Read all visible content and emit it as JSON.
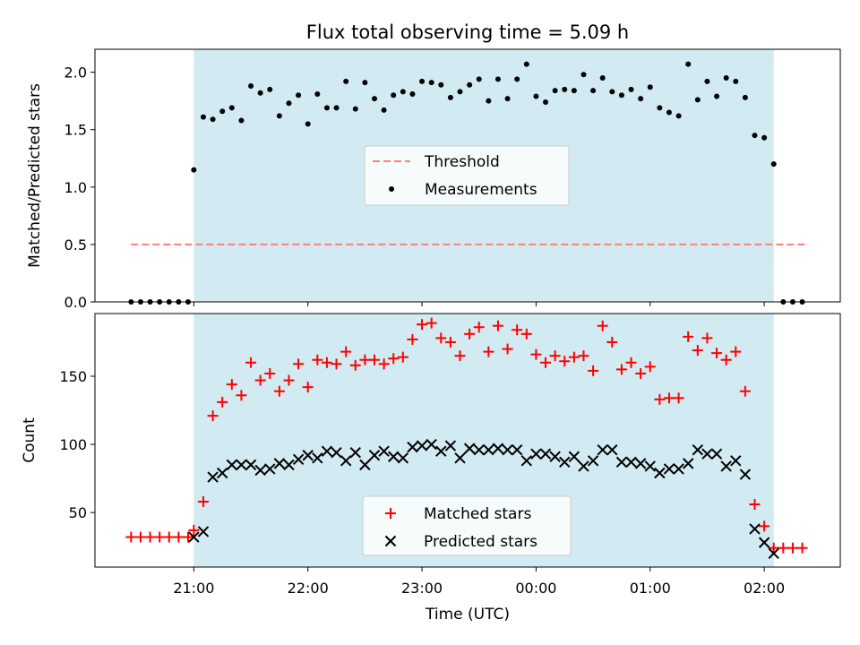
{
  "chart_data": [
    {
      "type": "scatter",
      "title": "Flux total observing time = 5.09 h",
      "xlabel": "",
      "ylabel": "Matched/Predicted stars",
      "ylim": [
        0,
        2.2
      ],
      "yticks": [
        "0.0",
        "0.5",
        "1.0",
        "1.5",
        "2.0"
      ],
      "xlim": [
        "20:08",
        "02:40"
      ],
      "shaded_interval": [
        "21:00",
        "02:05"
      ],
      "shaded_color": "#add8e6",
      "legend_position": "center",
      "threshold": {
        "name": "Threshold",
        "value": 0.5,
        "x_start": "20:27",
        "x_end": "02:23",
        "color": "#ff7f7f",
        "style": "dashed"
      },
      "series": [
        {
          "name": "Measurements",
          "color": "#000000",
          "marker": "dot",
          "points": [
            [
              "20:27",
              0.0
            ],
            [
              "20:32",
              0.0
            ],
            [
              "20:37",
              0.0
            ],
            [
              "20:42",
              0.0
            ],
            [
              "20:47",
              0.0
            ],
            [
              "20:52",
              0.0
            ],
            [
              "20:57",
              0.0
            ],
            [
              "21:00",
              1.15
            ],
            [
              "21:05",
              1.61
            ],
            [
              "21:10",
              1.59
            ],
            [
              "21:15",
              1.66
            ],
            [
              "21:20",
              1.69
            ],
            [
              "21:25",
              1.58
            ],
            [
              "21:30",
              1.88
            ],
            [
              "21:35",
              1.82
            ],
            [
              "21:40",
              1.85
            ],
            [
              "21:45",
              1.62
            ],
            [
              "21:50",
              1.73
            ],
            [
              "21:55",
              1.8
            ],
            [
              "22:00",
              1.55
            ],
            [
              "22:05",
              1.81
            ],
            [
              "22:10",
              1.69
            ],
            [
              "22:15",
              1.69
            ],
            [
              "22:20",
              1.92
            ],
            [
              "22:25",
              1.68
            ],
            [
              "22:30",
              1.91
            ],
            [
              "22:35",
              1.77
            ],
            [
              "22:40",
              1.67
            ],
            [
              "22:45",
              1.8
            ],
            [
              "22:50",
              1.83
            ],
            [
              "22:55",
              1.81
            ],
            [
              "23:00",
              1.92
            ],
            [
              "23:05",
              1.91
            ],
            [
              "23:10",
              1.89
            ],
            [
              "23:15",
              1.78
            ],
            [
              "23:20",
              1.83
            ],
            [
              "23:25",
              1.89
            ],
            [
              "23:30",
              1.94
            ],
            [
              "23:35",
              1.75
            ],
            [
              "23:40",
              1.94
            ],
            [
              "23:45",
              1.77
            ],
            [
              "23:50",
              1.94
            ],
            [
              "23:55",
              2.07
            ],
            [
              "00:00",
              1.79
            ],
            [
              "00:05",
              1.74
            ],
            [
              "00:10",
              1.84
            ],
            [
              "00:15",
              1.85
            ],
            [
              "00:20",
              1.84
            ],
            [
              "00:25",
              1.98
            ],
            [
              "00:30",
              1.84
            ],
            [
              "00:35",
              1.95
            ],
            [
              "00:40",
              1.83
            ],
            [
              "00:45",
              1.8
            ],
            [
              "00:50",
              1.85
            ],
            [
              "00:55",
              1.77
            ],
            [
              "01:00",
              1.87
            ],
            [
              "01:05",
              1.69
            ],
            [
              "01:10",
              1.65
            ],
            [
              "01:15",
              1.62
            ],
            [
              "01:20",
              2.07
            ],
            [
              "01:25",
              1.76
            ],
            [
              "01:30",
              1.92
            ],
            [
              "01:35",
              1.79
            ],
            [
              "01:40",
              1.95
            ],
            [
              "01:45",
              1.92
            ],
            [
              "01:50",
              1.78
            ],
            [
              "01:55",
              1.45
            ],
            [
              "02:00",
              1.43
            ],
            [
              "02:05",
              1.2
            ],
            [
              "02:10",
              0.0
            ],
            [
              "02:15",
              0.0
            ],
            [
              "02:20",
              0.0
            ]
          ]
        }
      ]
    },
    {
      "type": "scatter",
      "title": "",
      "xlabel": "Time (UTC)",
      "ylabel": "Count",
      "ylim": [
        10,
        196
      ],
      "yticks": [
        "50",
        "100",
        "150"
      ],
      "xlim": [
        "20:08",
        "02:40"
      ],
      "xticks": [
        "21:00",
        "22:00",
        "23:00",
        "00:00",
        "01:00",
        "02:00"
      ],
      "shaded_interval": [
        "21:00",
        "02:05"
      ],
      "shaded_color": "#add8e6",
      "legend_position": "bottom-center",
      "series": [
        {
          "name": "Matched stars",
          "color": "#ff0000",
          "marker": "plus",
          "points": [
            [
              "20:27",
              32
            ],
            [
              "20:32",
              32
            ],
            [
              "20:37",
              32
            ],
            [
              "20:42",
              32
            ],
            [
              "20:47",
              32
            ],
            [
              "20:52",
              32
            ],
            [
              "20:57",
              32
            ],
            [
              "21:00",
              37
            ],
            [
              "21:05",
              58
            ],
            [
              "21:10",
              121
            ],
            [
              "21:15",
              131
            ],
            [
              "21:20",
              144
            ],
            [
              "21:25",
              136
            ],
            [
              "21:30",
              160
            ],
            [
              "21:35",
              147
            ],
            [
              "21:40",
              152
            ],
            [
              "21:45",
              139
            ],
            [
              "21:50",
              147
            ],
            [
              "21:55",
              159
            ],
            [
              "22:00",
              142
            ],
            [
              "22:05",
              162
            ],
            [
              "22:10",
              160
            ],
            [
              "22:15",
              159
            ],
            [
              "22:20",
              168
            ],
            [
              "22:25",
              158
            ],
            [
              "22:30",
              162
            ],
            [
              "22:35",
              162
            ],
            [
              "22:40",
              159
            ],
            [
              "22:45",
              163
            ],
            [
              "22:50",
              164
            ],
            [
              "22:55",
              177
            ],
            [
              "23:00",
              188
            ],
            [
              "23:05",
              189
            ],
            [
              "23:10",
              178
            ],
            [
              "23:15",
              175
            ],
            [
              "23:20",
              165
            ],
            [
              "23:25",
              181
            ],
            [
              "23:30",
              186
            ],
            [
              "23:35",
              168
            ],
            [
              "23:40",
              187
            ],
            [
              "23:45",
              170
            ],
            [
              "23:50",
              184
            ],
            [
              "23:55",
              181
            ],
            [
              "00:00",
              166
            ],
            [
              "00:05",
              160
            ],
            [
              "00:10",
              165
            ],
            [
              "00:15",
              161
            ],
            [
              "00:20",
              164
            ],
            [
              "00:25",
              165
            ],
            [
              "00:30",
              154
            ],
            [
              "00:35",
              187
            ],
            [
              "00:40",
              175
            ],
            [
              "00:45",
              155
            ],
            [
              "00:50",
              160
            ],
            [
              "00:55",
              152
            ],
            [
              "01:00",
              157
            ],
            [
              "01:05",
              133
            ],
            [
              "01:10",
              134
            ],
            [
              "01:15",
              134
            ],
            [
              "01:20",
              179
            ],
            [
              "01:25",
              169
            ],
            [
              "01:30",
              178
            ],
            [
              "01:35",
              167
            ],
            [
              "01:40",
              162
            ],
            [
              "01:45",
              168
            ],
            [
              "01:50",
              139
            ],
            [
              "01:55",
              56
            ],
            [
              "02:00",
              40
            ],
            [
              "02:05",
              24
            ],
            [
              "02:10",
              24
            ],
            [
              "02:15",
              24
            ],
            [
              "02:20",
              24
            ]
          ]
        },
        {
          "name": "Predicted stars",
          "color": "#000000",
          "marker": "x",
          "points": [
            [
              "21:00",
              32
            ],
            [
              "21:05",
              36
            ],
            [
              "21:10",
              76
            ],
            [
              "21:15",
              79
            ],
            [
              "21:20",
              85
            ],
            [
              "21:25",
              85
            ],
            [
              "21:30",
              85
            ],
            [
              "21:35",
              81
            ],
            [
              "21:40",
              82
            ],
            [
              "21:45",
              86
            ],
            [
              "21:50",
              85
            ],
            [
              "21:55",
              89
            ],
            [
              "22:00",
              92
            ],
            [
              "22:05",
              90
            ],
            [
              "22:10",
              95
            ],
            [
              "22:15",
              94
            ],
            [
              "22:20",
              88
            ],
            [
              "22:25",
              94
            ],
            [
              "22:30",
              85
            ],
            [
              "22:35",
              92
            ],
            [
              "22:40",
              95
            ],
            [
              "22:45",
              91
            ],
            [
              "22:50",
              90
            ],
            [
              "22:55",
              98
            ],
            [
              "23:00",
              99
            ],
            [
              "23:05",
              100
            ],
            [
              "23:10",
              95
            ],
            [
              "23:15",
              99
            ],
            [
              "23:20",
              90
            ],
            [
              "23:25",
              97
            ],
            [
              "23:30",
              96
            ],
            [
              "23:35",
              96
            ],
            [
              "23:40",
              97
            ],
            [
              "23:45",
              96
            ],
            [
              "23:50",
              96
            ],
            [
              "23:55",
              88
            ],
            [
              "00:00",
              93
            ],
            [
              "00:05",
              93
            ],
            [
              "00:10",
              91
            ],
            [
              "00:15",
              87
            ],
            [
              "00:20",
              91
            ],
            [
              "00:25",
              84
            ],
            [
              "00:30",
              88
            ],
            [
              "00:35",
              96
            ],
            [
              "00:40",
              96
            ],
            [
              "00:45",
              87
            ],
            [
              "00:50",
              87
            ],
            [
              "00:55",
              86
            ],
            [
              "01:00",
              84
            ],
            [
              "01:05",
              79
            ],
            [
              "01:10",
              82
            ],
            [
              "01:15",
              82
            ],
            [
              "01:20",
              86
            ],
            [
              "01:25",
              96
            ],
            [
              "01:30",
              93
            ],
            [
              "01:35",
              93
            ],
            [
              "01:40",
              84
            ],
            [
              "01:45",
              88
            ],
            [
              "01:50",
              78
            ],
            [
              "01:55",
              38
            ],
            [
              "02:00",
              28
            ],
            [
              "02:05",
              20
            ]
          ]
        }
      ]
    }
  ]
}
